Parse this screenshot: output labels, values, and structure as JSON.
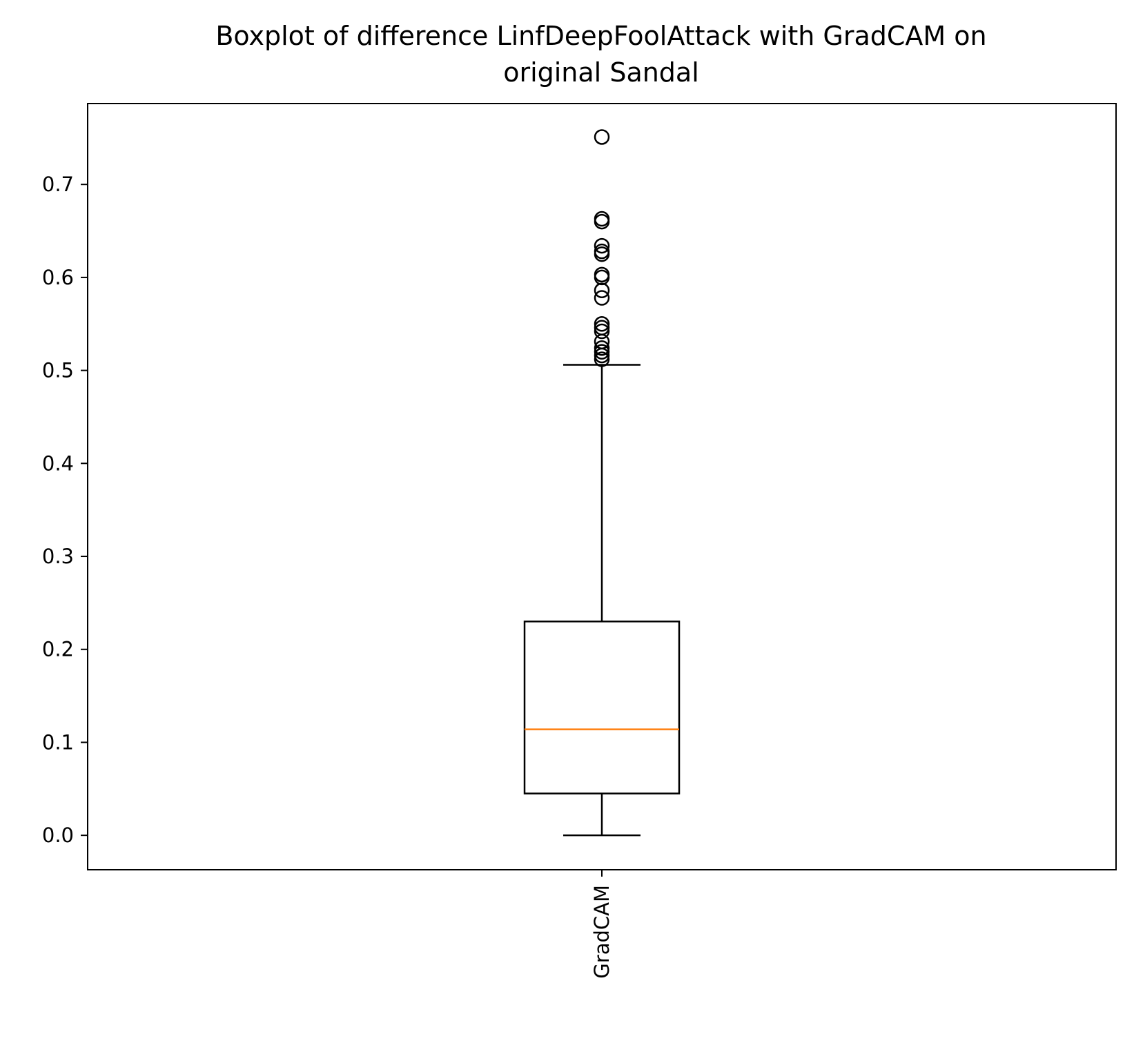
{
  "chart_data": {
    "type": "boxplot",
    "title": "Boxplot of difference LinfDeepFoolAttack with GradCAM on original Sandal",
    "title_lines": [
      "Boxplot of difference LinfDeepFoolAttack with GradCAM on",
      "original Sandal"
    ],
    "xlabel": "",
    "ylabel": "",
    "ylim": [
      -0.037,
      0.787
    ],
    "yticks": [
      0.0,
      0.1,
      0.2,
      0.3,
      0.4,
      0.5,
      0.6,
      0.7
    ],
    "ytick_labels": [
      "0.0",
      "0.1",
      "0.2",
      "0.3",
      "0.4",
      "0.5",
      "0.6",
      "0.7"
    ],
    "categories": [
      "GradCAM"
    ],
    "tick_label_rotation": "vertical",
    "grid": false,
    "boxes": [
      {
        "label": "GradCAM",
        "whisker_low": 0.0,
        "q1": 0.045,
        "median": 0.114,
        "q3": 0.23,
        "whisker_high": 0.506,
        "outliers": [
          0.512,
          0.516,
          0.52,
          0.524,
          0.531,
          0.542,
          0.546,
          0.55,
          0.578,
          0.586,
          0.6,
          0.603,
          0.625,
          0.628,
          0.634,
          0.66,
          0.663,
          0.751
        ]
      }
    ],
    "colors": {
      "box": "#000000",
      "median": "#ff7f0e",
      "background": "#ffffff"
    }
  }
}
